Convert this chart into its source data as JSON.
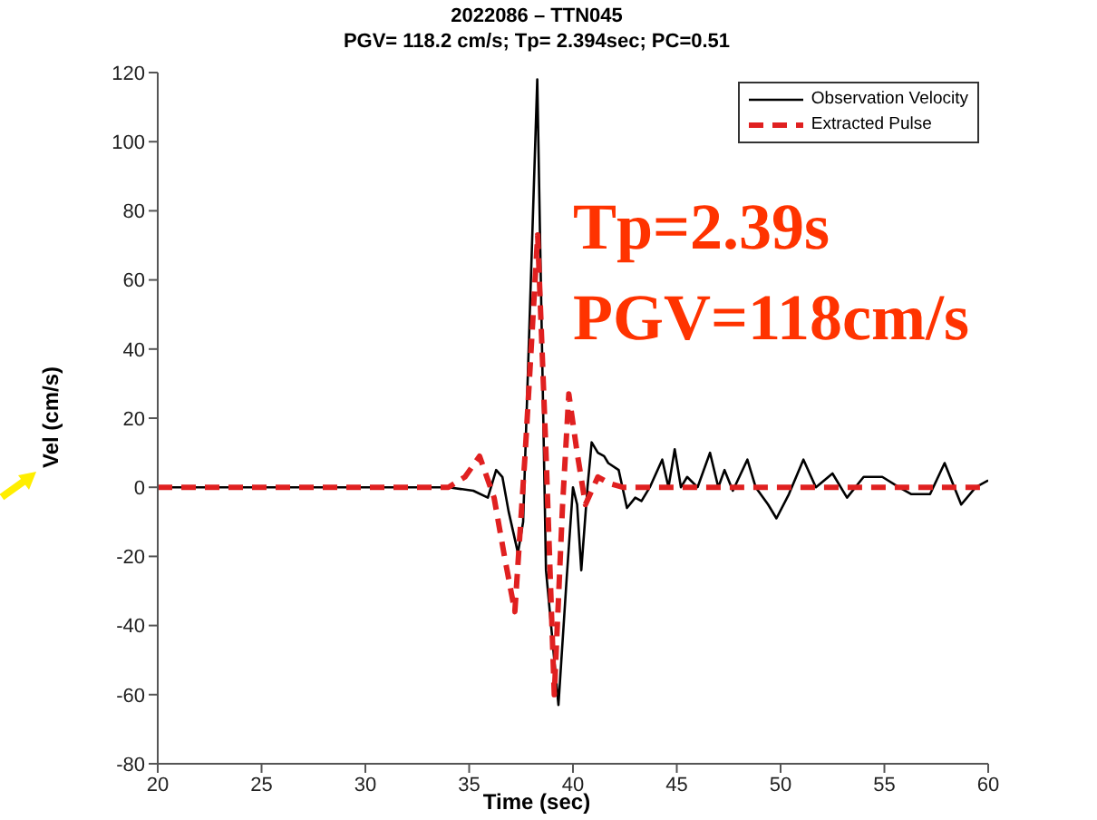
{
  "chart_data": {
    "type": "line",
    "title": "2022086 – TTN045",
    "subtitle": "PGV=  118.2 cm/s; Tp= 2.394sec; PC=0.51",
    "xlabel": "Time (sec)",
    "ylabel": "Vel (cm/s)",
    "xlim": [
      20,
      60
    ],
    "xticks": [
      20,
      25,
      30,
      35,
      40,
      45,
      50,
      55,
      60
    ],
    "ylim": [
      -80,
      120
    ],
    "yticks": [
      -80,
      -60,
      -40,
      -20,
      0,
      20,
      40,
      60,
      80,
      100,
      120
    ],
    "legend": "top right",
    "annotations": [
      "Tp=2.39s",
      "PGV=118cm/s"
    ],
    "series": [
      {
        "name": "Observation Velocity",
        "color": "#000000",
        "line_style": "solid",
        "x": [
          20,
          34,
          35.2,
          35.9,
          36.3,
          36.6,
          36.9,
          37.35,
          37.6,
          38.28,
          38.7,
          39.3,
          39.7,
          40.0,
          40.2,
          40.4,
          40.7,
          40.9,
          41.2,
          41.5,
          41.7,
          42.2,
          42.6,
          43.0,
          43.3,
          43.7,
          44.3,
          44.6,
          44.9,
          45.2,
          45.5,
          46.0,
          46.6,
          47.0,
          47.3,
          47.7,
          48.4,
          48.8,
          49.4,
          49.8,
          50.4,
          51.1,
          51.7,
          52.5,
          53.2,
          54.0,
          54.9,
          55.7,
          56.3,
          57.2,
          57.9,
          58.7,
          59.4,
          60
        ],
        "values": [
          0,
          0,
          -1,
          -3,
          5,
          3,
          -7,
          -19,
          -10,
          118,
          -24,
          -63,
          -26,
          0,
          -5,
          -24,
          0,
          13,
          10,
          9,
          7,
          5,
          -6,
          -3,
          -4,
          0,
          8,
          0,
          11,
          0,
          3,
          0,
          10,
          0,
          5,
          -1,
          8,
          0,
          -5,
          -9,
          -2,
          8,
          0,
          4,
          -3,
          3,
          3,
          0,
          -2,
          -2,
          7,
          -5,
          0,
          2
        ]
      },
      {
        "name": "Extracted Pulse",
        "color": "#e02020",
        "line_style": "dashed",
        "x": [
          20,
          34,
          34.8,
          35.5,
          36.2,
          36.7,
          37.2,
          37.7,
          38.3,
          38.7,
          39.1,
          39.5,
          39.8,
          40.2,
          40.6,
          41.2,
          41.8,
          42.4,
          60
        ],
        "values": [
          0,
          0,
          3,
          9,
          -3,
          -20,
          -36,
          10,
          73,
          10,
          -60,
          -5,
          27,
          10,
          -5,
          3,
          1,
          0,
          0
        ]
      }
    ]
  }
}
